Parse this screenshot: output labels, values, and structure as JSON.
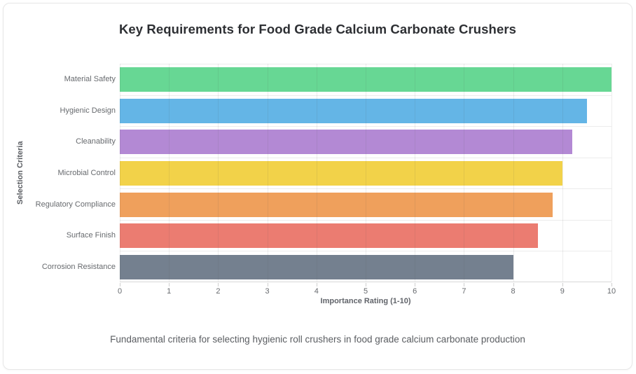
{
  "card": {
    "title": "Key Requirements for Food Grade Calcium Carbonate Crushers",
    "subtitle": "Fundamental criteria for selecting hygienic roll crushers in food grade calcium carbonate production"
  },
  "chart_data": {
    "type": "bar",
    "orientation": "horizontal",
    "title": "Key Requirements for Food Grade Calcium Carbonate Crushers",
    "subtitle": "Fundamental criteria for selecting hygienic roll crushers in food grade calcium carbonate production",
    "categories": [
      "Material Safety",
      "Hygienic Design",
      "Cleanability",
      "Microbial Control",
      "Regulatory Compliance",
      "Surface Finish",
      "Corrosion Resistance"
    ],
    "values": [
      10,
      9.5,
      9.2,
      9,
      8.8,
      8.5,
      8
    ],
    "bar_colors": [
      "#67d794",
      "#64b5e6",
      "#b389d4",
      "#f2d249",
      "#efa05c",
      "#eb7c71",
      "#74808f"
    ],
    "xlabel": "Importance Rating (1-10)",
    "ylabel": "Selection Criteria",
    "xlim": [
      0,
      10
    ],
    "x_ticks": [
      0,
      1,
      2,
      3,
      4,
      5,
      6,
      7,
      8,
      9,
      10
    ],
    "grid": true,
    "legend": false
  }
}
